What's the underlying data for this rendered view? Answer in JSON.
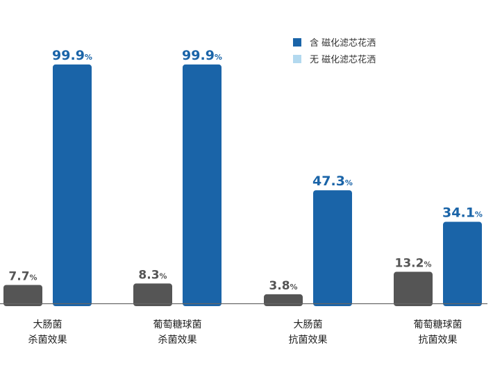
{
  "colors": {
    "with_filter": "#1a64a8",
    "without_filter": "#b3d9ef",
    "bar_gray": "#555555",
    "axis": "#666666"
  },
  "legend": {
    "placement": "top-right",
    "items": [
      {
        "label": "含 磁化滤芯花洒",
        "color": "#1a64a8"
      },
      {
        "label": "无 磁化滤芯花洒",
        "color": "#b3d9ef"
      }
    ]
  },
  "chart_data": {
    "type": "bar",
    "categories": [
      [
        "大肠菌",
        "杀菌效果"
      ],
      [
        "葡萄糖球菌",
        "杀菌效果"
      ],
      [
        "大肠菌",
        "抗菌效果"
      ],
      [
        "葡萄糖球菌",
        "抗菌效果"
      ]
    ],
    "series": [
      {
        "values": [
          7.7,
          8.3,
          3.8,
          13.2
        ],
        "labels": [
          "7.7",
          "8.3",
          "3.8",
          "13.2"
        ]
      },
      {
        "values": [
          99.9,
          99.9,
          47.3,
          34.1
        ],
        "labels": [
          "99.9",
          "99.9",
          "47.3",
          "34.1"
        ]
      }
    ],
    "unit": "%",
    "ylim": [
      0,
      100
    ],
    "grid": false
  }
}
